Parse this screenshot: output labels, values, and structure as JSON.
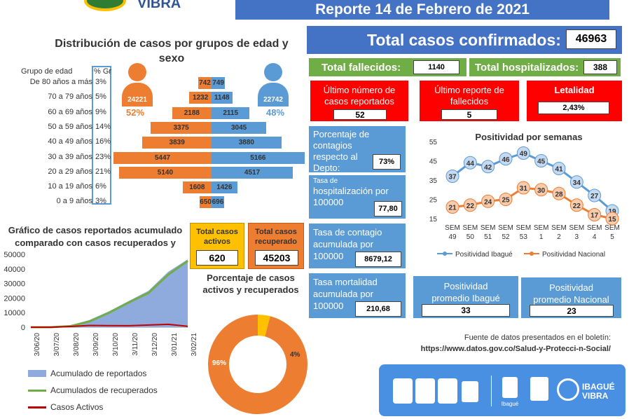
{
  "header": {
    "title": "Reporte 14 de Febrero de 2021",
    "logo_text": "VIBRA"
  },
  "pyramid": {
    "title": "Distribución de casos por grupos de edad y sexo",
    "col_group": "Grupo de edad",
    "col_pct": "% Gr",
    "groups": [
      {
        "label": "De 80 años a más",
        "pct": "3%",
        "female": 742,
        "male": 749
      },
      {
        "label": "70 a 79 años",
        "pct": "5%",
        "female": 1232,
        "male": 1148
      },
      {
        "label": "60 a 69 años",
        "pct": "9%",
        "female": 2188,
        "male": 2115
      },
      {
        "label": "50 a 59 años",
        "pct": "14%",
        "female": 3375,
        "male": 3045
      },
      {
        "label": "40 a 49 años",
        "pct": "16%",
        "female": 3839,
        "male": 3880
      },
      {
        "label": "30 a 39 años",
        "pct": "23%",
        "female": 5447,
        "male": 5166
      },
      {
        "label": "20 a 29 años",
        "pct": "21%",
        "female": 5140,
        "male": 4517
      },
      {
        "label": "10 a 19 años",
        "pct": "6%",
        "female": 1608,
        "male": 1426
      },
      {
        "label": "0 a 9 años",
        "pct": "3%",
        "female": 650,
        "male": 696
      }
    ],
    "female_total": "24221",
    "female_pct": "52%",
    "male_total": "22742",
    "male_pct": "48%",
    "female_color": "#ed7d31",
    "male_color": "#5b9bd5"
  },
  "totals": {
    "confirmados_label": "Total casos confirmados:",
    "confirmados": "46963",
    "fallecidos_label": "Total fallecidos:",
    "fallecidos": "1140",
    "hospitalizados_label": "Total hospitalizados:",
    "hospitalizados": "388"
  },
  "red_boxes": [
    {
      "label": "Último número de casos reportados",
      "value": "52"
    },
    {
      "label": "Último reporte de fallecidos",
      "value": "5"
    },
    {
      "label": "Letalidad",
      "value": "2,43%"
    }
  ],
  "blue_boxes": [
    {
      "label": "Porcentaje de contagios respecto al Depto:",
      "value": "73%"
    },
    {
      "label_small": "Tasa de",
      "label": "hospitalización por 100000",
      "value": "77,80"
    },
    {
      "label": "Tasa de contagio acumulada por 100000",
      "value": "8679,12"
    },
    {
      "label": "Tasa mortalidad acumulada por 100000",
      "value": "210,68"
    }
  ],
  "positividad": {
    "title": "Positividad por semanas",
    "ibague_label": "Positividad promedio Ibagué",
    "ibague_value": "33",
    "nacional_label": "Positividad promedio Nacional",
    "nacional_value": "23"
  },
  "activos": {
    "label": "Total casos activos",
    "value": "620"
  },
  "recuperados": {
    "label": "Total casos recuperado",
    "value": "45203"
  },
  "donut": {
    "title": "Porcentaje de casos activos y recuperados",
    "big": "96%",
    "small": "4%"
  },
  "area": {
    "title": "Gráfico de casos reportados acumulado comparado con casos recuperados y",
    "legend": [
      "Acumulado de reportados",
      "Acumulados de recuperados",
      "Casos Activos"
    ]
  },
  "source": {
    "label": "Fuente de datos presentados en el boletín:",
    "url": "https://www.datos.gov.co/Salud-y-Protecci-n-Social/"
  },
  "footer": {
    "brand": "IBAGUÉ VIBRA",
    "city": "Ibagué"
  },
  "chart_data": [
    {
      "type": "line",
      "title": "Positividad por semanas",
      "categories": [
        "SEM 49",
        "SEM 50",
        "SEM 51",
        "SEM 52",
        "SEM 53",
        "SEM 1",
        "SEM 2",
        "SEM 3",
        "SEM 4",
        "SEM 5"
      ],
      "series": [
        {
          "name": "Positividad Ibagué",
          "values": [
            37,
            44,
            42,
            46,
            49,
            45,
            41,
            34,
            27,
            19
          ],
          "color": "#5b9bd5"
        },
        {
          "name": "Positividad Nacional",
          "values": [
            21,
            22,
            24,
            25,
            31,
            30,
            28,
            22,
            17,
            15
          ],
          "color": "#ed7d31"
        }
      ],
      "ylim": [
        15,
        55
      ],
      "yticks": [
        15,
        25,
        35,
        45,
        55
      ],
      "legend": "bottom"
    },
    {
      "type": "area",
      "title": "Gráfico de casos reportados acumulado comparado con casos recuperados y",
      "x": [
        "3/06/20",
        "3/07/20",
        "3/08/20",
        "3/09/20",
        "3/10/20",
        "3/11/20",
        "3/12/20",
        "3/01/21",
        "3/02/21"
      ],
      "series": [
        {
          "name": "Acumulado de reportados",
          "values": [
            0,
            30,
            1200,
            5000,
            11000,
            18000,
            25000,
            38000,
            46500
          ],
          "color": "#8faadc"
        },
        {
          "name": "Acumulados de recuperados",
          "values": [
            0,
            20,
            700,
            4000,
            10000,
            17000,
            23500,
            36000,
            45500
          ],
          "color": "#70ad47"
        },
        {
          "name": "Casos Activos",
          "values": [
            0,
            10,
            500,
            1200,
            1100,
            1000,
            1500,
            2000,
            600
          ],
          "color": "#c00000"
        }
      ],
      "ylim": [
        0,
        50000
      ],
      "yticks": [
        0,
        10000,
        20000,
        30000,
        40000,
        50000
      ]
    },
    {
      "type": "pie",
      "title": "Porcentaje de casos activos y recuperados",
      "categories": [
        "",
        ""
      ],
      "values": [
        96,
        4
      ],
      "colors": [
        "#ed7d31",
        "#ffc000"
      ]
    }
  ]
}
